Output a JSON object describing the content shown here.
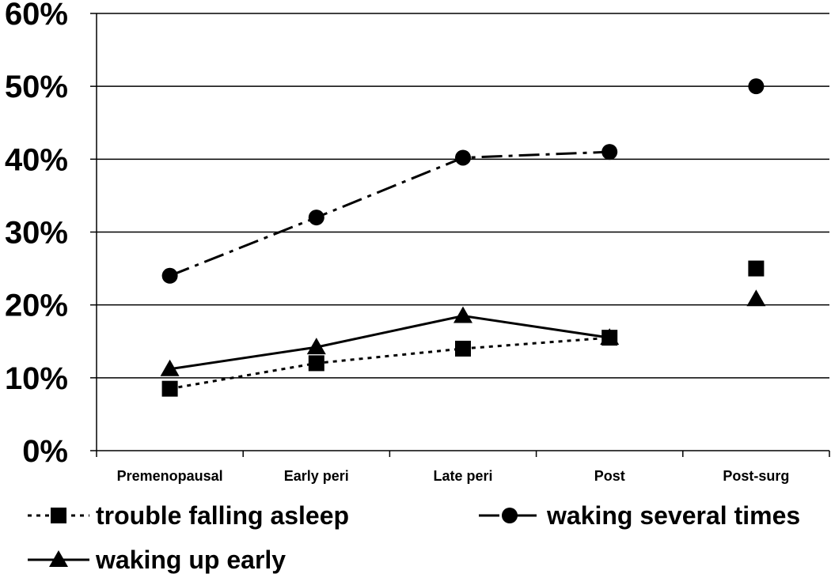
{
  "chart_data": {
    "type": "line",
    "categories": [
      "Premenopausal",
      "Early peri",
      "Late peri",
      "Post",
      "Post-surg"
    ],
    "ylim": [
      0,
      60
    ],
    "yticks": [
      0,
      10,
      20,
      30,
      40,
      50,
      60
    ],
    "ytick_labels": [
      "0%",
      "10%",
      "20%",
      "30%",
      "40%",
      "50%",
      "60%"
    ],
    "grid": true,
    "legend_position": "bottom",
    "series": [
      {
        "name": "trouble falling asleep",
        "marker": "square",
        "line_style": "dotted",
        "values": [
          8.5,
          12,
          14,
          15.5,
          25
        ]
      },
      {
        "name": "waking several times",
        "marker": "circle",
        "line_style": "dash-dot",
        "values": [
          24,
          32,
          40.2,
          41,
          50
        ]
      },
      {
        "name": "waking up early",
        "marker": "triangle",
        "line_style": "solid",
        "values": [
          11.2,
          14.2,
          18.5,
          15.5,
          20.8
        ]
      }
    ],
    "connected_points": 4,
    "color": "#000000"
  }
}
